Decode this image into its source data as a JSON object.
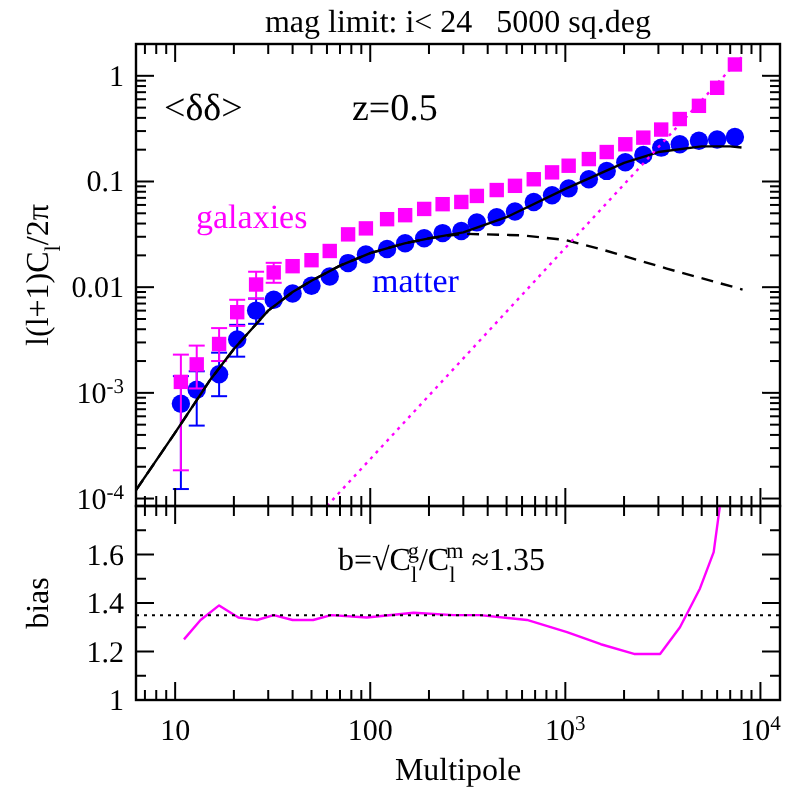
{
  "chart_data": [
    {
      "type": "scatter",
      "title": "mag limit: i< 24   5000 sq.deg",
      "ylabel": "l(l+1)C$_{l}$/2π",
      "annotations": [
        "<δδ>",
        "z=0.5"
      ],
      "log": "xy",
      "legend": false,
      "tick_labels": "y",
      "xlim": [
        6.3,
        12600
      ],
      "ylim": [
        8.5e-05,
        2
      ],
      "xticks": [
        {
          "value": 7,
          "label": null
        },
        {
          "value": 8,
          "label": null
        },
        {
          "value": 9,
          "label": null
        },
        {
          "value": 10,
          "label": null
        },
        {
          "value": 20,
          "label": null
        },
        {
          "value": 30,
          "label": null
        },
        {
          "value": 40,
          "label": null
        },
        {
          "value": 50,
          "label": null
        },
        {
          "value": 60,
          "label": null
        },
        {
          "value": 70,
          "label": null
        },
        {
          "value": 80,
          "label": null
        },
        {
          "value": 90,
          "label": null
        },
        {
          "value": 100,
          "label": null
        },
        {
          "value": 200,
          "label": null
        },
        {
          "value": 300,
          "label": null
        },
        {
          "value": 400,
          "label": null
        },
        {
          "value": 500,
          "label": null
        },
        {
          "value": 600,
          "label": null
        },
        {
          "value": 700,
          "label": null
        },
        {
          "value": 800,
          "label": null
        },
        {
          "value": 900,
          "label": null
        },
        {
          "value": 1000,
          "label": null
        },
        {
          "value": 2000,
          "label": null
        },
        {
          "value": 3000,
          "label": null
        },
        {
          "value": 4000,
          "label": null
        },
        {
          "value": 5000,
          "label": null
        },
        {
          "value": 6000,
          "label": null
        },
        {
          "value": 7000,
          "label": null
        },
        {
          "value": 8000,
          "label": null
        },
        {
          "value": 9000,
          "label": null
        },
        {
          "value": 10000,
          "label": null
        }
      ],
      "yticks": [
        {
          "value": 0.0001,
          "label": "10$^{-4}$"
        },
        {
          "value": 0.0002,
          "label": null
        },
        {
          "value": 0.0003,
          "label": null
        },
        {
          "value": 0.0004,
          "label": null
        },
        {
          "value": 0.0005,
          "label": null
        },
        {
          "value": 0.0006,
          "label": null
        },
        {
          "value": 0.0007,
          "label": null
        },
        {
          "value": 0.0008,
          "label": null
        },
        {
          "value": 0.0009,
          "label": null
        },
        {
          "value": 0.001,
          "label": "10$^{-3}$"
        },
        {
          "value": 0.002,
          "label": null
        },
        {
          "value": 0.003,
          "label": null
        },
        {
          "value": 0.004,
          "label": null
        },
        {
          "value": 0.005,
          "label": null
        },
        {
          "value": 0.006,
          "label": null
        },
        {
          "value": 0.007,
          "label": null
        },
        {
          "value": 0.008,
          "label": null
        },
        {
          "value": 0.009,
          "label": null
        },
        0.01,
        {
          "value": 0.02,
          "label": null
        },
        {
          "value": 0.03,
          "label": null
        },
        {
          "value": 0.04,
          "label": null
        },
        {
          "value": 0.05,
          "label": null
        },
        {
          "value": 0.06,
          "label": null
        },
        {
          "value": 0.07,
          "label": null
        },
        {
          "value": 0.08,
          "label": null
        },
        {
          "value": 0.09,
          "label": null
        },
        0.1,
        {
          "value": 0.2,
          "label": null
        },
        {
          "value": 0.3,
          "label": null
        },
        {
          "value": 0.4,
          "label": null
        },
        {
          "value": 0.5,
          "label": null
        },
        {
          "value": 0.6,
          "label": null
        },
        {
          "value": 0.7,
          "label": null
        },
        {
          "value": 0.8,
          "label": null
        },
        {
          "value": 0.9,
          "label": null
        },
        1,
        {
          "value": 2,
          "label": null
        }
      ],
      "x": [
        10.7,
        12.9,
        16.8,
        20.8,
        26,
        32,
        40,
        50,
        62,
        77,
        95,
        122,
        151,
        189,
        235,
        293,
        352,
        445,
        552,
        689,
        855,
        1040,
        1320,
        1630,
        2030,
        2510,
        3100,
        3860,
        4840,
        6000,
        7400
      ],
      "series": [
        {
          "name": "matter",
          "marker": "circle",
          "color": "#0000ff",
          "values": [
            0.00079,
            0.00107,
            0.0015,
            0.0032,
            0.006,
            0.0076,
            0.0087,
            0.0103,
            0.0126,
            0.0169,
            0.0204,
            0.023,
            0.026,
            0.029,
            0.0325,
            0.034,
            0.041,
            0.046,
            0.052,
            0.064,
            0.074,
            0.086,
            0.105,
            0.126,
            0.152,
            0.178,
            0.209,
            0.225,
            0.243,
            0.25,
            0.264
          ],
          "errors": [
            [
              0.000123,
              0.00144
            ],
            [
              0.00049,
              0.0016
            ],
            [
              0.00093,
              0.0024
            ],
            [
              0.0022,
              0.0044
            ],
            [
              0.0045,
              0.0078
            ],
            null,
            null,
            null,
            null,
            null,
            null,
            null,
            null,
            null,
            null,
            null,
            null,
            null,
            null,
            null,
            null,
            null,
            null,
            null,
            null,
            null,
            null,
            null,
            null,
            null,
            null
          ]
        },
        {
          "name": "galaxies",
          "marker": "square",
          "color": "#ff00ff",
          "values": [
            0.00127,
            0.00186,
            0.0029,
            0.0058,
            0.0106,
            0.0138,
            0.0158,
            0.018,
            0.022,
            0.0316,
            0.036,
            0.044,
            0.048,
            0.055,
            0.061,
            0.064,
            0.073,
            0.083,
            0.091,
            0.105,
            0.122,
            0.141,
            0.163,
            0.19,
            0.225,
            0.26,
            0.31,
            0.39,
            0.52,
            0.77,
            1.28
          ],
          "errors": [
            [
              0.000185,
              0.0023
            ],
            [
              0.0011,
              0.0028
            ],
            [
              0.002,
              0.0041
            ],
            [
              0.0043,
              0.0076
            ],
            [
              0.0078,
              0.014
            ],
            [
              0.011,
              0.017
            ],
            null,
            null,
            null,
            null,
            null,
            null,
            null,
            null,
            null,
            null,
            null,
            null,
            null,
            null,
            null,
            null,
            null,
            null,
            null,
            null,
            null,
            null,
            null,
            null,
            null
          ]
        },
        {
          "type": "line",
          "line_style": "solid",
          "color": "#000000",
          "x": [
            6.3,
            10,
            15,
            20,
            30,
            40,
            50,
            70,
            100,
            150,
            200,
            300,
            500,
            1000,
            2000,
            3000,
            5000,
            7000,
            8000
          ],
          "values": [
            0.00012,
            0.00042,
            0.0013,
            0.0026,
            0.006,
            0.009,
            0.0115,
            0.016,
            0.021,
            0.026,
            0.029,
            0.033,
            0.046,
            0.085,
            0.15,
            0.19,
            0.215,
            0.215,
            0.21
          ]
        },
        {
          "type": "line",
          "line_style": "dashed",
          "color": "#000000",
          "x": [
            6.3,
            10,
            15,
            20,
            30,
            40,
            50,
            70,
            100,
            150,
            200,
            300,
            590,
            1000,
            1510,
            3310,
            8100
          ],
          "values": [
            0.00012,
            0.00042,
            0.0013,
            0.0026,
            0.006,
            0.009,
            0.0115,
            0.016,
            0.021,
            0.026,
            0.029,
            0.032,
            0.031,
            0.028,
            0.023,
            0.015,
            0.0095
          ]
        },
        {
          "type": "line",
          "line_style": "dotted",
          "color": "#ff00ff",
          "x": [
            60,
            8000
          ],
          "values": [
            8.5e-05,
            1.5
          ]
        }
      ]
    },
    {
      "type": "line",
      "xlabel": "Multipole",
      "ylabel": "bias",
      "annotations": [
        "b=√C$_{l}$$^{g}$/C$_{l}$$^{m}$ ≈1.35"
      ],
      "log": "x",
      "xlim": [
        6.3,
        12600
      ],
      "ylim": [
        1,
        1.8
      ],
      "xticks": [
        {
          "value": 7,
          "label": null
        },
        {
          "value": 8,
          "label": null
        },
        {
          "value": 9,
          "label": null
        },
        10,
        {
          "value": 20,
          "label": null
        },
        {
          "value": 30,
          "label": null
        },
        {
          "value": 40,
          "label": null
        },
        {
          "value": 50,
          "label": null
        },
        {
          "value": 60,
          "label": null
        },
        {
          "value": 70,
          "label": null
        },
        {
          "value": 80,
          "label": null
        },
        {
          "value": 90,
          "label": null
        },
        100,
        {
          "value": 200,
          "label": null
        },
        {
          "value": 300,
          "label": null
        },
        {
          "value": 400,
          "label": null
        },
        {
          "value": 500,
          "label": null
        },
        {
          "value": 600,
          "label": null
        },
        {
          "value": 700,
          "label": null
        },
        {
          "value": 800,
          "label": null
        },
        {
          "value": 900,
          "label": null
        },
        {
          "value": 1000,
          "label": "10$^{3}$"
        },
        {
          "value": 2000,
          "label": null
        },
        {
          "value": 3000,
          "label": null
        },
        {
          "value": 4000,
          "label": null
        },
        {
          "value": 5000,
          "label": null
        },
        {
          "value": 6000,
          "label": null
        },
        {
          "value": 7000,
          "label": null
        },
        {
          "value": 8000,
          "label": null
        },
        {
          "value": 9000,
          "label": null
        },
        {
          "value": 10000,
          "label": "10$^{4}$"
        }
      ],
      "yticks": [
        1,
        {
          "value": 1.1,
          "label": null
        },
        1.2,
        {
          "value": 1.3,
          "label": null
        },
        1.4,
        {
          "value": 1.5,
          "label": null
        },
        1.6,
        {
          "value": 1.7,
          "label": null
        }
      ],
      "ref_lines": [
        {
          "axis": "y",
          "value": 1.35,
          "color": "#000000",
          "line_style": "dotted"
        }
      ],
      "series": [
        {
          "line_style": "solid",
          "color": "#ff00ff",
          "x": [
            11.1,
            13.5,
            16.8,
            21.1,
            26.3,
            32,
            40,
            51,
            63,
            96,
            167,
            268,
            366,
            636,
            1020,
            1520,
            2250,
            3060,
            3870,
            4900,
            5760,
            6200
          ],
          "values": [
            1.25,
            1.33,
            1.39,
            1.34,
            1.33,
            1.35,
            1.33,
            1.33,
            1.35,
            1.34,
            1.36,
            1.35,
            1.35,
            1.33,
            1.28,
            1.23,
            1.19,
            1.19,
            1.3,
            1.46,
            1.61,
            1.8
          ]
        }
      ]
    }
  ]
}
